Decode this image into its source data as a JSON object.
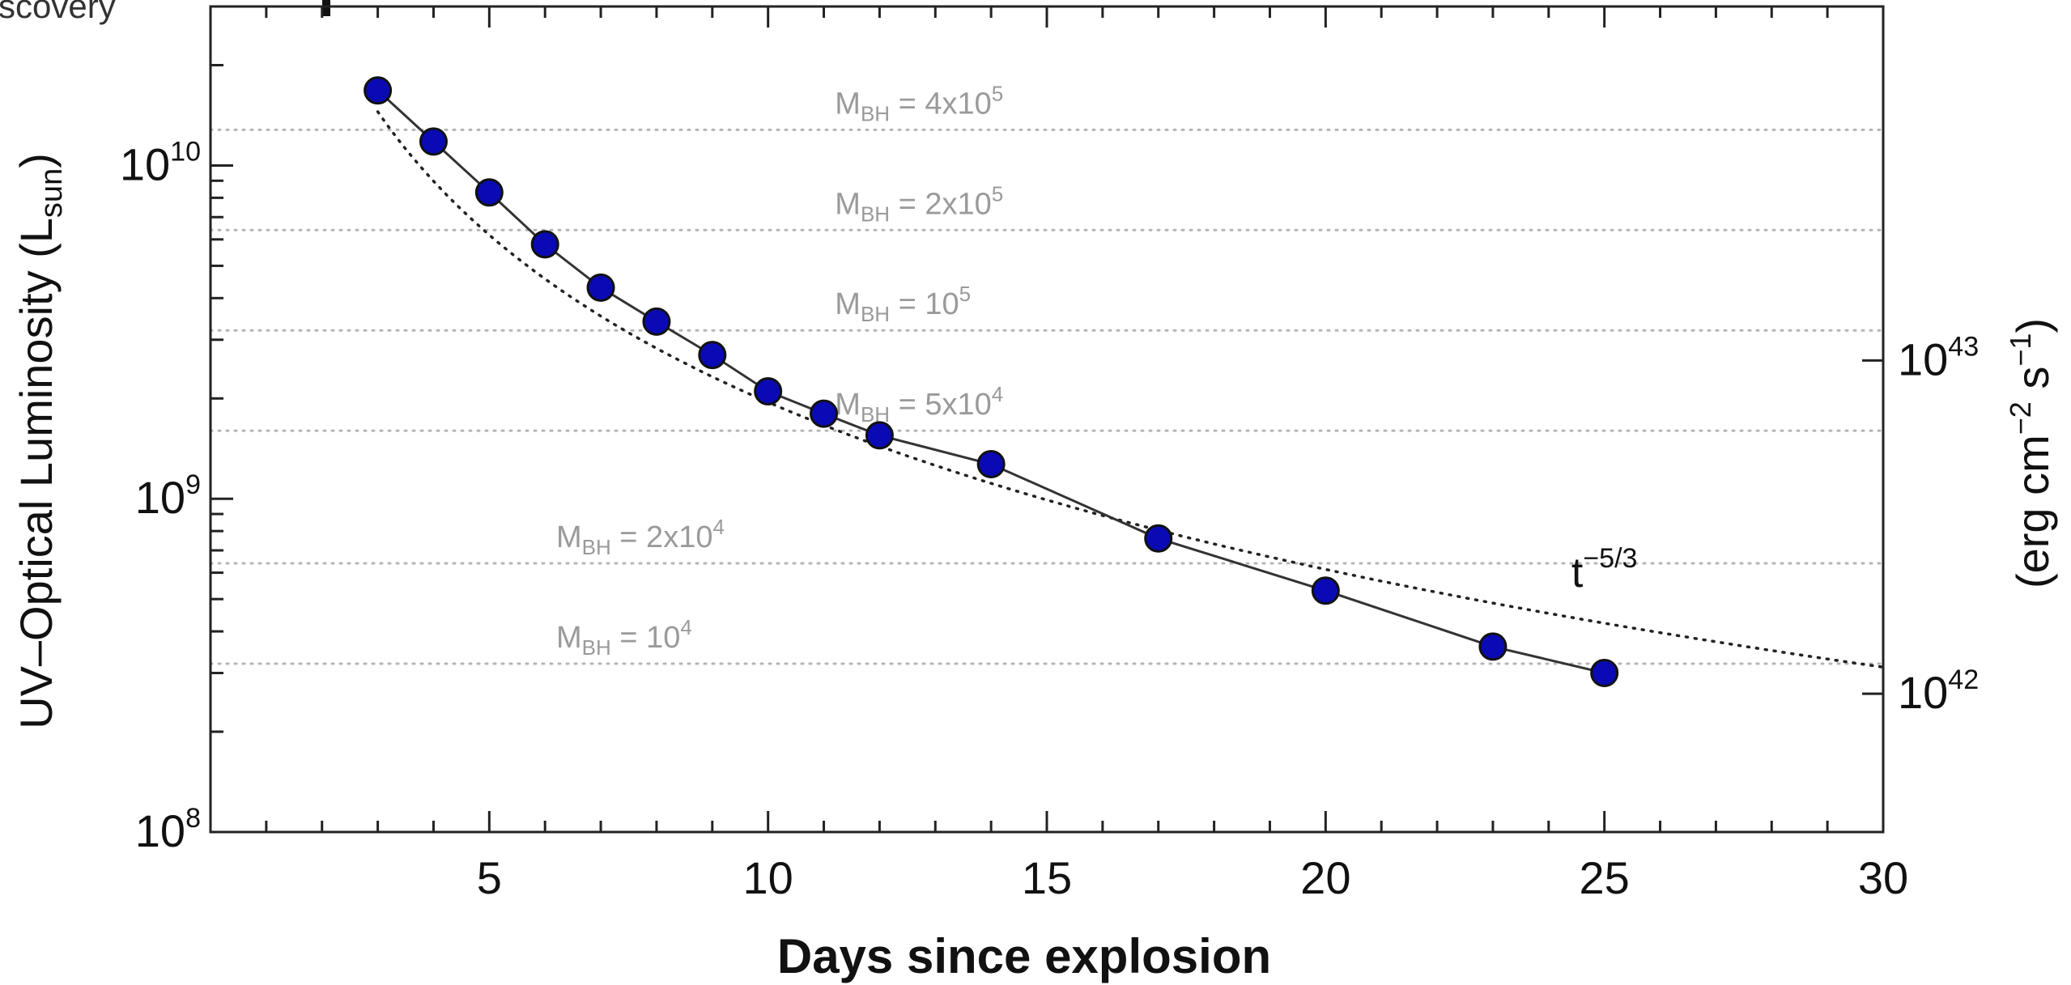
{
  "top_left_fragment": "scovery",
  "chart_data": {
    "type": "line",
    "xlabel": "Days since explosion",
    "ylabel": "UV–Optical Luminosity (L",
    "ylabel_sub": "sun",
    "ylabel_close": ")",
    "y2label": "(erg cm",
    "y2label_exp1": "−2",
    "y2label_mid": " s",
    "y2label_exp2": "−1",
    "y2label_close": ")",
    "xlim": [
      0,
      30
    ],
    "ylim": [
      100000000,
      30000000000
    ],
    "yscale": "log",
    "x_ticks": [
      5,
      10,
      15,
      20,
      25,
      30
    ],
    "x_tick_labels": [
      "5",
      "10",
      "15",
      "20",
      "25",
      "30"
    ],
    "y_ticks": [
      {
        "value": 10000000000,
        "base": "10",
        "exp": "10"
      },
      {
        "value": 1000000000,
        "base": "10",
        "exp": "9"
      },
      {
        "value": 100000000,
        "base": "10",
        "exp": "8"
      }
    ],
    "y2_ticks": [
      {
        "value": 2600000000,
        "base": "10",
        "exp": "43"
      },
      {
        "value": 260000000,
        "base": "10",
        "exp": "42"
      }
    ],
    "series": [
      {
        "x": [
          3,
          4,
          5,
          6,
          7,
          8,
          9,
          10,
          11,
          12,
          14,
          17,
          20,
          23,
          25
        ],
        "y": [
          16800000000,
          11800000000,
          8300000000,
          5800000000,
          4300000000,
          3400000000,
          2700000000,
          2100000000,
          1800000000,
          1550000000,
          1270000000,
          760000000,
          530000000,
          360000000,
          300000000
        ],
        "color": "#0a0ab4"
      }
    ],
    "powerlaw": {
      "label": "t",
      "label_exp": "−5/3",
      "x0": 3,
      "y0": 14500000000,
      "index": -1.6667
    },
    "mbh_lines": [
      {
        "value": 12800000000,
        "label": "M",
        "sub": "BH",
        "rest": " = 4x10",
        "exp": "5",
        "x": 11.2
      },
      {
        "value": 6400000000,
        "label": "M",
        "sub": "BH",
        "rest": " = 2x10",
        "exp": "5",
        "x": 11.2
      },
      {
        "value": 3200000000,
        "label": "M",
        "sub": "BH",
        "rest": " = 10",
        "exp": "5",
        "x": 11.2
      },
      {
        "value": 1600000000,
        "label": "M",
        "sub": "BH",
        "rest": " = 5x10",
        "exp": "4",
        "x": 11.2
      },
      {
        "value": 640000000,
        "label": "M",
        "sub": "BH",
        "rest": " = 2x10",
        "exp": "4",
        "x": 6.2
      },
      {
        "value": 320000000,
        "label": "M",
        "sub": "BH",
        "rest": " = 10",
        "exp": "4",
        "x": 6.2
      }
    ]
  }
}
